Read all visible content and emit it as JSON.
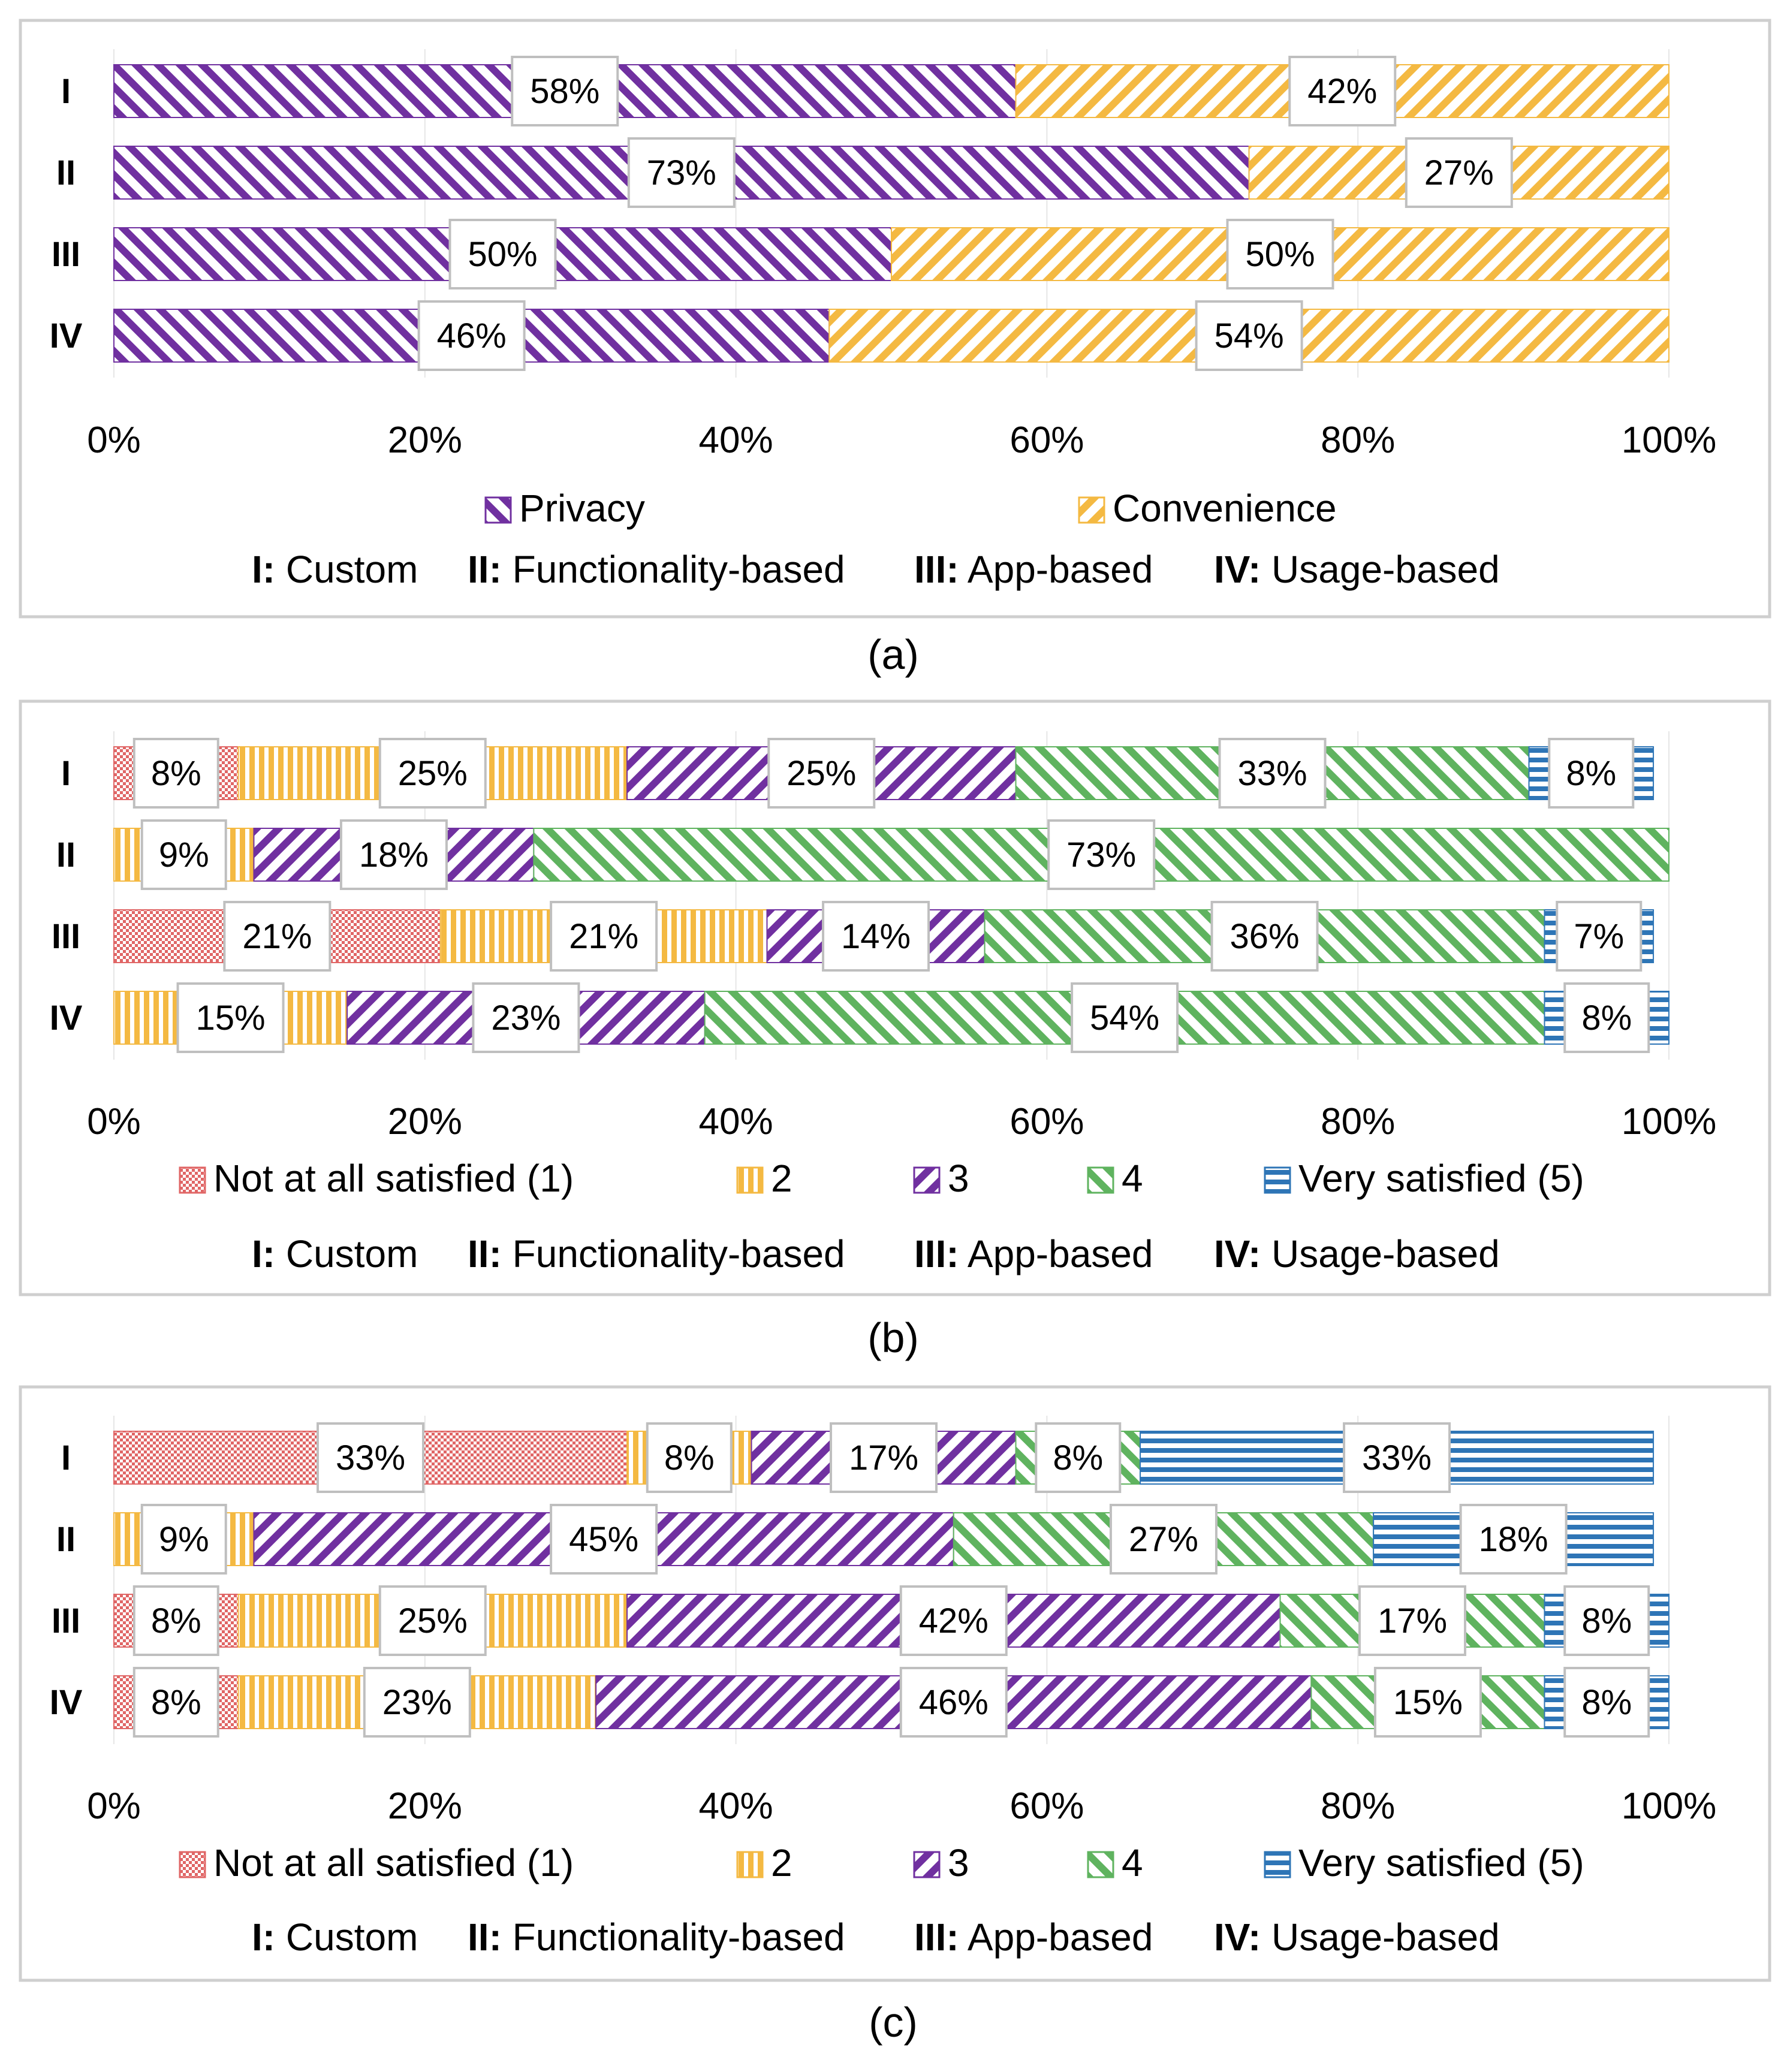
{
  "colors": {
    "privacy": "#7030a0",
    "convenience": "#f4b942",
    "not_at_all": "#e06666",
    "two": "#f4b942",
    "three": "#7030a0",
    "four": "#5fb35f",
    "very": "#2e75b6",
    "panel_border": "#cfcfcf",
    "label_border": "#bfbfbf"
  },
  "chart_data": [
    {
      "type": "bar",
      "orientation": "horizontal",
      "stacked": "percent",
      "caption": "(a)",
      "categories": [
        "I",
        "II",
        "III",
        "IV"
      ],
      "xlim": [
        0,
        100
      ],
      "xticks": [
        "0%",
        "20%",
        "40%",
        "60%",
        "80%",
        "100%"
      ],
      "series": [
        {
          "name": "Privacy",
          "key": "privacy",
          "pattern": "back",
          "values": [
            58,
            73,
            50,
            46
          ],
          "labels": [
            "58%",
            "73%",
            "50%",
            "46%"
          ]
        },
        {
          "name": "Convenience",
          "key": "convenience",
          "pattern": "fwd",
          "values": [
            42,
            27,
            50,
            54
          ],
          "labels": [
            "42%",
            "27%",
            "50%",
            "54%"
          ]
        }
      ],
      "legend": "bottom",
      "category_legend": [
        {
          "key": "I:",
          "text": "Custom"
        },
        {
          "key": "II:",
          "text": "Functionality-based"
        },
        {
          "key": "III:",
          "text": "App-based"
        },
        {
          "key": "IV:",
          "text": "Usage-based"
        }
      ]
    },
    {
      "type": "bar",
      "orientation": "horizontal",
      "stacked": "percent",
      "caption": "(b)",
      "categories": [
        "I",
        "II",
        "III",
        "IV"
      ],
      "xlim": [
        0,
        100
      ],
      "xticks": [
        "0%",
        "20%",
        "40%",
        "60%",
        "80%",
        "100%"
      ],
      "series": [
        {
          "name": "Not at all satisfied (1)",
          "key": "not_at_all",
          "pattern": "dots",
          "values": [
            8,
            0,
            21,
            0
          ],
          "labels": [
            "8%",
            "",
            "21%",
            ""
          ]
        },
        {
          "name": "2",
          "key": "two",
          "pattern": "vert",
          "values": [
            25,
            9,
            21,
            15
          ],
          "labels": [
            "25%",
            "9%",
            "21%",
            "15%"
          ]
        },
        {
          "name": "3",
          "key": "three",
          "pattern": "fwd",
          "values": [
            25,
            18,
            14,
            23
          ],
          "labels": [
            "25%",
            "18%",
            "14%",
            "23%"
          ]
        },
        {
          "name": "4",
          "key": "four",
          "pattern": "back",
          "values": [
            33,
            73,
            36,
            54
          ],
          "labels": [
            "33%",
            "73%",
            "36%",
            "54%"
          ]
        },
        {
          "name": "Very satisfied (5)",
          "key": "very",
          "pattern": "horiz",
          "values": [
            8,
            0,
            7,
            8
          ],
          "labels": [
            "8%",
            "",
            "7%",
            "8%"
          ]
        }
      ],
      "legend": "bottom",
      "category_legend": [
        {
          "key": "I:",
          "text": "Custom"
        },
        {
          "key": "II:",
          "text": "Functionality-based"
        },
        {
          "key": "III:",
          "text": "App-based"
        },
        {
          "key": "IV:",
          "text": "Usage-based"
        }
      ]
    },
    {
      "type": "bar",
      "orientation": "horizontal",
      "stacked": "percent",
      "caption": "(c)",
      "categories": [
        "I",
        "II",
        "III",
        "IV"
      ],
      "xlim": [
        0,
        100
      ],
      "xticks": [
        "0%",
        "20%",
        "40%",
        "60%",
        "80%",
        "100%"
      ],
      "series": [
        {
          "name": "Not at all satisfied (1)",
          "key": "not_at_all",
          "pattern": "dots",
          "values": [
            33,
            0,
            8,
            8
          ],
          "labels": [
            "33%",
            "",
            "8%",
            "8%"
          ]
        },
        {
          "name": "2",
          "key": "two",
          "pattern": "vert",
          "values": [
            8,
            9,
            25,
            23
          ],
          "labels": [
            "8%",
            "9%",
            "25%",
            "23%"
          ]
        },
        {
          "name": "3",
          "key": "three",
          "pattern": "fwd",
          "values": [
            17,
            45,
            42,
            46
          ],
          "labels": [
            "17%",
            "45%",
            "42%",
            "46%"
          ]
        },
        {
          "name": "4",
          "key": "four",
          "pattern": "back",
          "values": [
            8,
            27,
            17,
            15
          ],
          "labels": [
            "8%",
            "27%",
            "17%",
            "15%"
          ]
        },
        {
          "name": "Very satisfied (5)",
          "key": "very",
          "pattern": "horiz",
          "values": [
            33,
            18,
            8,
            8
          ],
          "labels": [
            "33%",
            "18%",
            "8%",
            "8%"
          ]
        }
      ],
      "legend": "bottom",
      "category_legend": [
        {
          "key": "I:",
          "text": "Custom"
        },
        {
          "key": "II:",
          "text": "Functionality-based"
        },
        {
          "key": "III:",
          "text": "App-based"
        },
        {
          "key": "IV:",
          "text": "Usage-based"
        }
      ]
    }
  ]
}
